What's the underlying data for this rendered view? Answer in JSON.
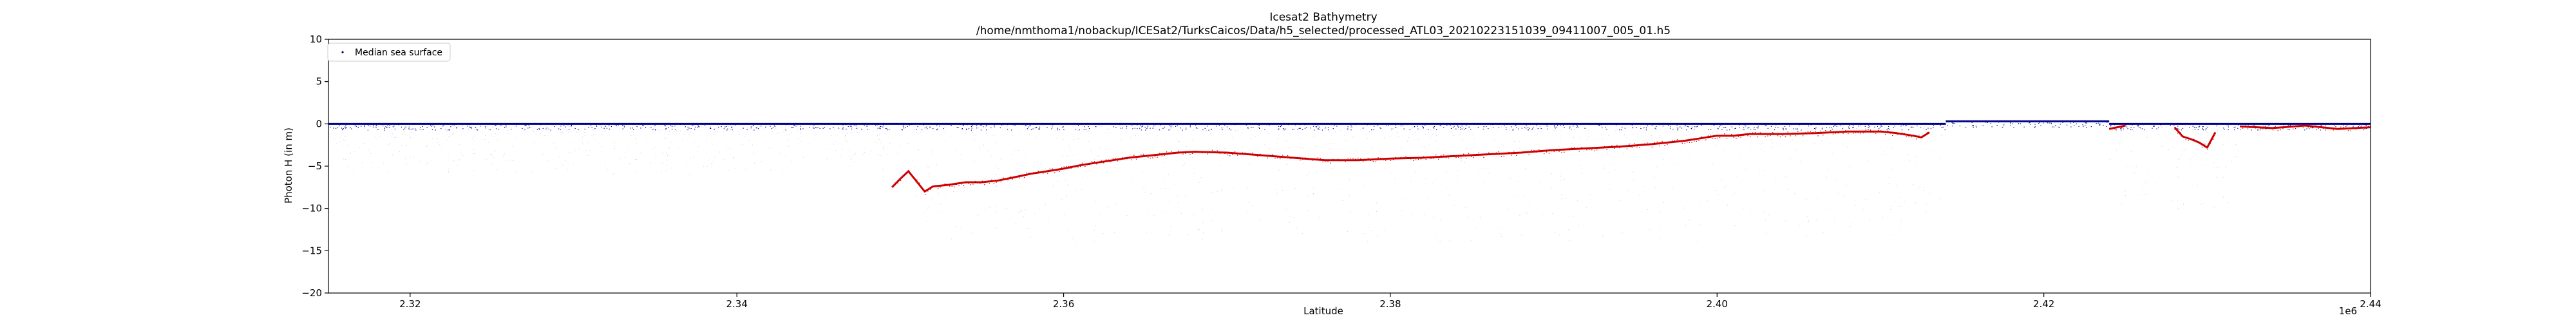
{
  "chart_data": {
    "type": "scatter",
    "title": "Icesat2 Bathymetry",
    "subtitle": "/home/nmthoma1/nobackup/ICESat2/TurksCaicos/Data/h5_selected/processed_ATL03_20210223151039_09411007_005_01.h5",
    "xlabel": "Latitude",
    "ylabel": "Photon H (in m)",
    "x_offset_label": "1e6",
    "xlim": [
      2315000,
      2440000
    ],
    "ylim": [
      -20,
      10
    ],
    "x_ticks": [
      2320000,
      2340000,
      2360000,
      2380000,
      2400000,
      2420000,
      2440000
    ],
    "x_tick_labels": [
      "2.32",
      "2.34",
      "2.36",
      "2.38",
      "2.40",
      "2.42",
      "2.44"
    ],
    "y_ticks": [
      -20,
      -15,
      -10,
      -5,
      0,
      5,
      10
    ],
    "y_tick_labels": [
      "−20",
      "−15",
      "−10",
      "−5",
      "0",
      "5",
      "10"
    ],
    "grid": false,
    "legend": {
      "position": "top-left",
      "entries": [
        "Median sea surface"
      ]
    },
    "series": [
      {
        "name": "Median sea surface",
        "color": "#00008b",
        "segments": [
          {
            "x": [
              2315000,
              2414000
            ],
            "y": [
              0,
              0
            ]
          },
          {
            "x": [
              2414000,
              2424000
            ],
            "y": [
              0.3,
              0.3
            ]
          },
          {
            "x": [
              2424000,
              2440000
            ],
            "y": [
              0,
              0
            ]
          }
        ]
      },
      {
        "role": "bathymetry",
        "color": "#cc0000",
        "x": [
          2349500,
          2350000,
          2350500,
          2351000,
          2351500,
          2352000,
          2353000,
          2354000,
          2355000,
          2356000,
          2357000,
          2358000,
          2359000,
          2360000,
          2361000,
          2362000,
          2363000,
          2364000,
          2365000,
          2366000,
          2367000,
          2368000,
          2370000,
          2372000,
          2374000,
          2376000,
          2378000,
          2380000,
          2382000,
          2384000,
          2386000,
          2388000,
          2390000,
          2392000,
          2394000,
          2396000,
          2398000,
          2399000,
          2400000,
          2401000,
          2402000,
          2404000,
          2406000,
          2408000,
          2410000,
          2411000,
          2412000,
          2412500,
          2413000
        ],
        "y": [
          -7.5,
          -6.5,
          -5.6,
          -6.8,
          -8,
          -7.4,
          -7.2,
          -6.9,
          -6.9,
          -6.7,
          -6.3,
          -5.9,
          -5.6,
          -5.3,
          -4.9,
          -4.6,
          -4.3,
          -4.0,
          -3.8,
          -3.6,
          -3.4,
          -3.3,
          -3.4,
          -3.7,
          -4.0,
          -4.3,
          -4.3,
          -4.1,
          -4.0,
          -3.8,
          -3.6,
          -3.4,
          -3.1,
          -2.9,
          -2.7,
          -2.4,
          -2.0,
          -1.7,
          -1.4,
          -1.4,
          -1.2,
          -1.2,
          -1.1,
          -0.9,
          -0.9,
          -1.1,
          -1.4,
          -1.6,
          -1.0
        ],
        "x2": [
          2428000,
          2428500,
          2429000,
          2429500,
          2430000,
          2430500
        ],
        "y2": [
          -0.4,
          -1.5,
          -1.8,
          -2.2,
          -2.8,
          -1.0
        ],
        "x3": [
          2424000,
          2424500,
          2425000
        ],
        "y3": [
          -0.6,
          -0.4,
          -0.2
        ],
        "x4": [
          2432000,
          2434000,
          2436000,
          2438000,
          2440000
        ],
        "y4": [
          -0.3,
          -0.5,
          -0.2,
          -0.6,
          -0.4
        ]
      },
      {
        "role": "photon-noise",
        "color": "#999999",
        "segments": [
          {
            "x": [
              2315000,
              2350000
            ],
            "depth": [
              0,
              -6
            ]
          },
          {
            "x": [
              2350000,
              2414000
            ],
            "depth": [
              0,
              -14
            ]
          },
          {
            "x": [
              2424000,
              2432000
            ],
            "depth": [
              0,
              -10
            ]
          }
        ]
      }
    ]
  }
}
